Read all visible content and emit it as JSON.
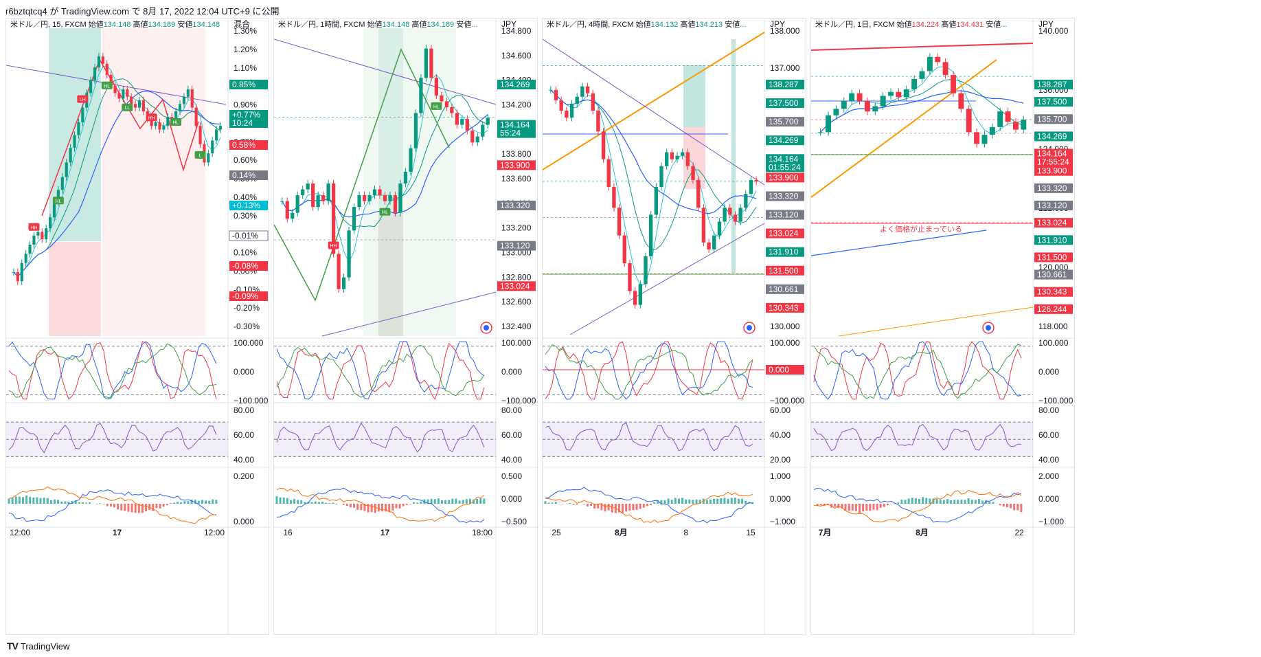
{
  "header": {
    "text": "r6bztqtcq4 が TradingView.com で 8月 17, 2022 12:04 UTC+9 に公開"
  },
  "footer": {
    "logo": "TV",
    "brand": "TradingView"
  },
  "colors": {
    "up": "#089981",
    "down": "#f23645",
    "stoch_k": "#2962ff",
    "stoch_d": "#f23645",
    "stoch_slow": "#43a047",
    "rsi": "#7e57c2",
    "macd": "#2962ff",
    "signal": "#ff6d00",
    "trend": "#7e57c2",
    "fib": "#ff9800"
  },
  "panels": [
    {
      "title": "米ドル／円, 15, FXCM",
      "ohlc": {
        "open_label": "始値",
        "open": "134.148",
        "high_label": "高値",
        "high": "134.189",
        "low_label": "安値",
        "low": "134.148"
      },
      "axis_title": "混合",
      "price_ticks": [
        "1.30%",
        "1.20%",
        "1.10%",
        "1.00%",
        "0.90%",
        "0.80%",
        "0.70%",
        "0.60%",
        "0.50%",
        "0.40%",
        "0.30%",
        "0.20%",
        "0.10%",
        "0.00%",
        "-0.10%",
        "-0.20%",
        "-0.30%"
      ],
      "price_labels": [
        {
          "text": "0.85%",
          "color": "#089981"
        },
        {
          "text": "+0.77%",
          "sub": "10:24",
          "color": "#089981"
        },
        {
          "text": "0.58%",
          "color": "#f23645"
        },
        {
          "text": "0.14%",
          "color": "#787b86"
        },
        {
          "text": "+0.13%",
          "color": "#00bcd4"
        },
        {
          "text": "-0.01%",
          "color": "#ffffff"
        },
        {
          "text": "-0.08%",
          "color": "#f23645"
        },
        {
          "text": "-0.09%",
          "color": "#f23645"
        }
      ],
      "stoch_ticks": [
        "100.000",
        "0.000",
        "−100.000"
      ],
      "rsi_ticks": [
        "80.00",
        "60.00",
        "40.00"
      ],
      "macd_ticks": [
        "0.200",
        "0.000"
      ],
      "time_ticks": [
        "12:00",
        "17",
        "12:00"
      ],
      "markers": [
        "HH",
        "HL",
        "LH",
        "HL",
        "LL",
        "HH",
        "HL",
        "L"
      ]
    },
    {
      "title": "米ドル／円, 1時間, FXCM",
      "ohlc": {
        "open_label": "始値",
        "open": "134.148",
        "high_label": "高値",
        "high": "134.189",
        "low_label": "安値",
        "low": "..."
      },
      "axis_title": "JPY",
      "price_ticks": [
        "134.800",
        "134.600",
        "134.400",
        "134.200",
        "134.000",
        "133.800",
        "133.600",
        "133.400",
        "133.200",
        "133.000",
        "132.800",
        "132.600",
        "132.400"
      ],
      "price_labels": [
        {
          "text": "134.269",
          "color": "#089981"
        },
        {
          "text": "134.164",
          "sub": "55:24",
          "color": "#089981"
        },
        {
          "text": "133.900",
          "color": "#f23645"
        },
        {
          "text": "133.320",
          "color": "#787b86"
        },
        {
          "text": "133.120",
          "color": "#787b86"
        },
        {
          "text": "133.024",
          "color": "#f23645"
        }
      ],
      "stoch_ticks": [
        "100.000",
        "0.000",
        "−100.000"
      ],
      "rsi_ticks": [
        "80.00",
        "60.00",
        "40.00"
      ],
      "macd_ticks": [
        "0.500",
        "0.000",
        "−0.500"
      ],
      "time_ticks": [
        "16",
        "17",
        "18:00"
      ],
      "markers": [
        "HH",
        "HL",
        "HL"
      ]
    },
    {
      "title": "米ドル／円, 4時間, FXCM",
      "ohlc": {
        "open_label": "始値",
        "open": "134.132",
        "high_label": "高値",
        "high": "134.213",
        "low_label": "安値",
        "low": "..."
      },
      "axis_title": "JPY",
      "price_ticks": [
        "138.000",
        "137.000",
        "136.000",
        "135.000",
        "134.000",
        "133.000",
        "132.000",
        "131.000",
        "130.000"
      ],
      "price_labels": [
        {
          "text": "138.287",
          "color": "#089981"
        },
        {
          "text": "137.500",
          "color": "#089981"
        },
        {
          "text": "135.700",
          "color": "#787b86"
        },
        {
          "text": "134.269",
          "color": "#089981"
        },
        {
          "text": "134.164",
          "sub": "01:55:24",
          "color": "#089981"
        },
        {
          "text": "133.900",
          "color": "#f23645"
        },
        {
          "text": "133.320",
          "color": "#787b86"
        },
        {
          "text": "133.120",
          "color": "#787b86"
        },
        {
          "text": "133.024",
          "color": "#f23645"
        },
        {
          "text": "131.910",
          "color": "#089981"
        },
        {
          "text": "131.500",
          "color": "#f23645"
        },
        {
          "text": "130.661",
          "color": "#787b86"
        },
        {
          "text": "130.343",
          "color": "#f23645"
        }
      ],
      "stoch_ticks": [
        "100.000",
        "0.000",
        "−100.000"
      ],
      "stoch_label": {
        "text": "0.000",
        "color": "#f23645"
      },
      "rsi_ticks": [
        "60.00",
        "40.00",
        "20.00"
      ],
      "macd_ticks": [
        "1.000",
        "0.000",
        "−1.000"
      ],
      "time_ticks": [
        "25",
        "8月",
        "8",
        "15"
      ],
      "markers": []
    },
    {
      "title": "米ドル／円, 1日, FXCM",
      "ohlc": {
        "open_label": "始値",
        "open": "134.224",
        "high_label": "高値",
        "high": "134.431",
        "low_label": "安値",
        "low": "..."
      },
      "axis_title": "JPY",
      "price_ticks": [
        "140.000",
        "136.000",
        "124.000",
        "122.000",
        "120.000",
        "118.000"
      ],
      "price_labels": [
        {
          "text": "138.287",
          "color": "#089981"
        },
        {
          "text": "137.500",
          "color": "#089981"
        },
        {
          "text": "135.700",
          "color": "#787b86"
        },
        {
          "text": "134.269",
          "color": "#089981"
        },
        {
          "text": "134.164",
          "sub": "17:55:24",
          "color": "#f23645"
        },
        {
          "text": "133.900",
          "color": "#f23645"
        },
        {
          "text": "133.320",
          "color": "#787b86"
        },
        {
          "text": "133.120",
          "color": "#787b86"
        },
        {
          "text": "133.024",
          "color": "#f23645"
        },
        {
          "text": "131.910",
          "color": "#089981"
        },
        {
          "text": "131.500",
          "color": "#f23645"
        },
        {
          "text": "130.661",
          "color": "#787b86"
        },
        {
          "text": "130.343",
          "color": "#f23645"
        },
        {
          "text": "126.244",
          "color": "#f23645"
        }
      ],
      "annotation": "よく価格が止まっている",
      "stoch_ticks": [
        "100.000",
        "0.000",
        "−100.000"
      ],
      "rsi_ticks": [
        "80.00",
        "60.00",
        "40.00"
      ],
      "macd_ticks": [
        "2.000",
        "0.000",
        "−1.000"
      ],
      "time_ticks": [
        "7月",
        "8月",
        "22"
      ],
      "markers": []
    }
  ],
  "chart_data": [
    {
      "type": "candlestick",
      "title": "米ドル／円, 15, FXCM",
      "scale": "percent",
      "ylim": [
        -0.35,
        1.32
      ],
      "closes": [
        0.0,
        -0.05,
        0.05,
        0.1,
        0.15,
        0.2,
        0.22,
        0.18,
        0.24,
        0.3,
        0.38,
        0.45,
        0.52,
        0.6,
        0.68,
        0.75,
        0.82,
        0.9,
        0.98,
        1.05,
        1.12,
        1.18,
        1.14,
        1.08,
        1.02,
        0.98,
        0.95,
        1.0,
        0.96,
        0.92,
        0.9,
        0.94,
        0.88,
        0.84,
        0.8,
        0.82,
        0.78,
        0.8,
        0.85,
        0.82,
        0.88,
        0.92,
        0.96,
        1.0,
        0.9,
        0.8,
        0.7,
        0.6,
        0.65,
        0.72,
        0.78,
        0.8
      ]
    },
    {
      "type": "candlestick",
      "title": "米ドル／円, 1時間, FXCM",
      "ylim": [
        132.3,
        134.9
      ],
      "closes": [
        133.45,
        133.3,
        133.35,
        133.5,
        133.55,
        133.6,
        133.4,
        133.5,
        133.45,
        133.6,
        133.0,
        132.7,
        132.8,
        133.2,
        133.4,
        133.5,
        133.45,
        133.5,
        133.55,
        133.5,
        133.45,
        133.5,
        133.35,
        133.6,
        133.7,
        133.9,
        134.2,
        134.5,
        134.75,
        134.5,
        134.35,
        134.3,
        134.25,
        134.2,
        134.1,
        134.15,
        134.05,
        133.95,
        134.0,
        134.1,
        134.16
      ]
    },
    {
      "type": "candlestick",
      "title": "米ドル／円, 4時間, FXCM",
      "ylim": [
        129.7,
        138.5
      ],
      "closes": [
        136.8,
        136.5,
        136.2,
        136.0,
        136.4,
        136.6,
        136.9,
        136.7,
        136.2,
        135.6,
        134.8,
        134.0,
        133.4,
        132.6,
        131.8,
        131.0,
        130.6,
        131.2,
        132.0,
        133.2,
        134.0,
        134.6,
        135.0,
        134.8,
        134.9,
        135.0,
        134.6,
        134.2,
        133.4,
        132.4,
        132.2,
        132.6,
        133.0,
        133.4,
        133.2,
        133.0,
        133.4,
        133.8,
        134.2,
        134.16
      ]
    },
    {
      "type": "candlestick",
      "title": "米ドル／円, 1日, FXCM",
      "ylim": [
        117.5,
        141.0
      ],
      "closes": [
        133.2,
        134.5,
        135.0,
        135.6,
        136.2,
        135.6,
        134.8,
        135.2,
        136.0,
        136.3,
        135.9,
        136.5,
        137.3,
        137.9,
        139.0,
        138.6,
        137.6,
        136.2,
        135.0,
        133.2,
        132.3,
        133.0,
        133.6,
        134.8,
        134.0,
        133.4,
        134.16
      ]
    }
  ]
}
